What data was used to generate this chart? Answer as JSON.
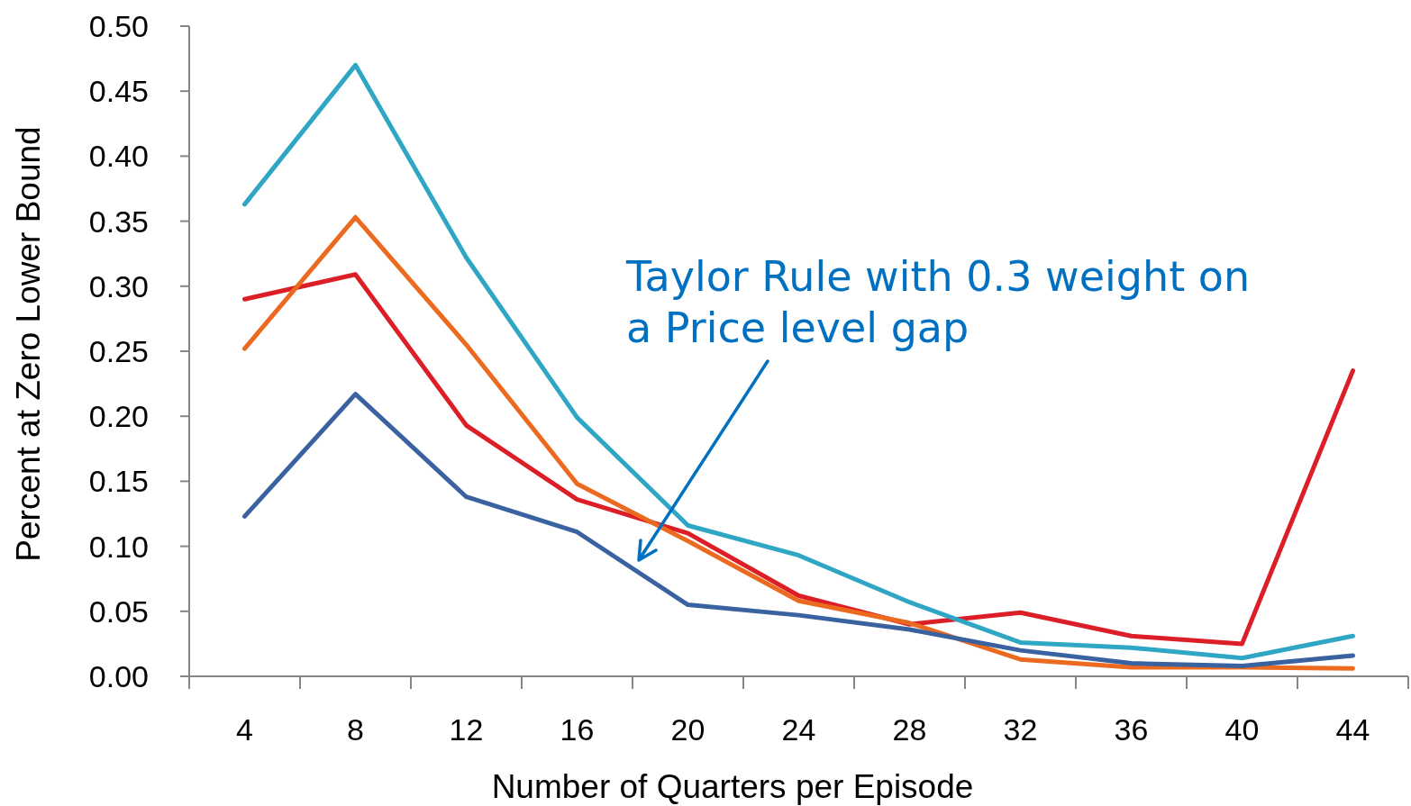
{
  "chart_data": {
    "type": "line",
    "xlabel": "Number of Quarters per Episode",
    "ylabel": "Percent at Zero Lower Bound",
    "annotations": [
      "Taylor Rule with 0.3 weight on a Price level gap"
    ],
    "categories": [
      "4",
      "8",
      "12",
      "16",
      "20",
      "24",
      "28",
      "32",
      "36",
      "40",
      "44"
    ],
    "ylim": [
      0,
      0.5
    ],
    "yticks": [
      {
        "value": 0,
        "label": "0.00"
      },
      {
        "value": 0.05,
        "label": "0.05"
      },
      {
        "value": 0.1,
        "label": "0.10"
      },
      {
        "value": 0.15,
        "label": "0.15"
      },
      {
        "value": 0.2,
        "label": "0.20"
      },
      {
        "value": 0.25,
        "label": "0.25"
      },
      {
        "value": 0.3,
        "label": "0.30"
      },
      {
        "value": 0.35,
        "label": "0.35"
      },
      {
        "value": 0.4,
        "label": "0.40"
      },
      {
        "value": 0.45,
        "label": "0.45"
      },
      {
        "value": 0.5,
        "label": "0.50"
      }
    ],
    "series": [
      {
        "color": "#dc1f27",
        "values": [
          0.29,
          0.309,
          0.193,
          0.136,
          0.11,
          0.062,
          0.04,
          0.049,
          0.031,
          0.025,
          0.235
        ]
      },
      {
        "color": "#ec6a1f",
        "values": [
          0.252,
          0.353,
          0.255,
          0.148,
          0.104,
          0.058,
          0.041,
          0.013,
          0.007,
          0.007,
          0.006
        ]
      },
      {
        "color": "#3b62a0",
        "values": [
          0.123,
          0.217,
          0.138,
          0.111,
          0.055,
          0.047,
          0.036,
          0.02,
          0.01,
          0.008,
          0.016
        ]
      },
      {
        "color": "#2fa6c4",
        "values": [
          0.363,
          0.47,
          0.322,
          0.199,
          0.116,
          0.093,
          0.057,
          0.026,
          0.022,
          0.014,
          0.031
        ]
      }
    ]
  }
}
